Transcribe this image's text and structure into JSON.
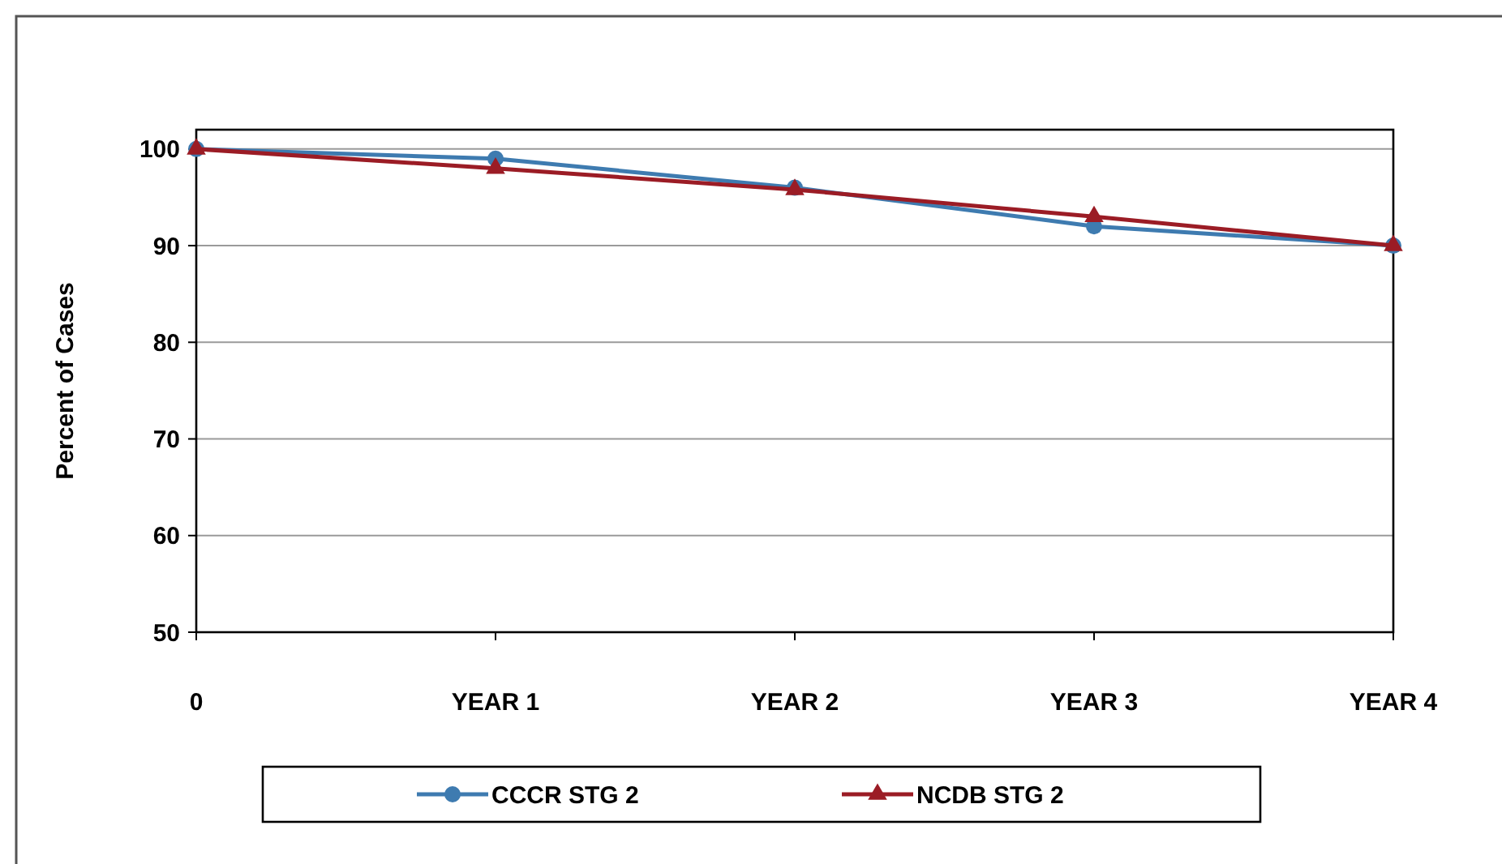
{
  "chart_data": {
    "type": "line",
    "ylabel": "Percent of Cases",
    "categories": [
      "0",
      "YEAR 1",
      "YEAR 2",
      "YEAR 3",
      "YEAR 4"
    ],
    "series": [
      {
        "name": "CCCR STG 2",
        "color": "#3e7bb0",
        "marker": "circle",
        "values": [
          100,
          99,
          96,
          92,
          90
        ]
      },
      {
        "name": "NCDB STG 2",
        "color": "#9b1c25",
        "marker": "triangle",
        "values": [
          100,
          98,
          95.8,
          93,
          90
        ]
      }
    ],
    "ylim": [
      50,
      102
    ],
    "yticks": [
      50,
      60,
      70,
      80,
      90,
      100
    ],
    "grid": "y",
    "legend": "bottom"
  }
}
